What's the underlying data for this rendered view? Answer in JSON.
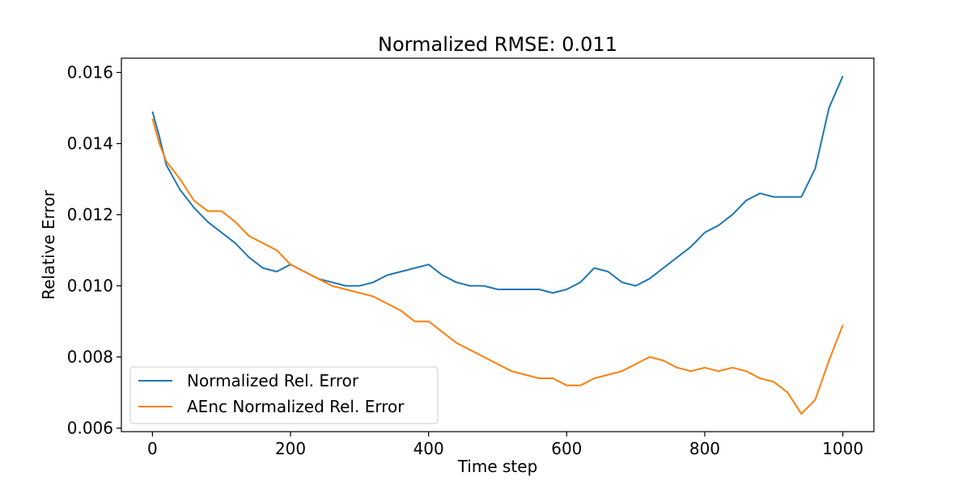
{
  "chart_data": {
    "type": "line",
    "title": "Normalized RMSE: 0.011",
    "xlabel": "Time step",
    "ylabel": "Relative Error",
    "xlim": [
      -45,
      1045
    ],
    "ylim": [
      0.0059,
      0.0164
    ],
    "x_ticks": [
      0,
      200,
      400,
      600,
      800,
      1000
    ],
    "x_tick_labels": [
      "0",
      "200",
      "400",
      "600",
      "800",
      "1000"
    ],
    "y_ticks": [
      0.006,
      0.008,
      0.01,
      0.012,
      0.014,
      0.016
    ],
    "y_tick_labels": [
      "0.006",
      "0.008",
      "0.010",
      "0.012",
      "0.014",
      "0.016"
    ],
    "grid": false,
    "legend_position": "lower-left",
    "series": [
      {
        "name": "Normalized Rel. Error",
        "color": "#1f77b4",
        "x": [
          0,
          10,
          20,
          40,
          60,
          80,
          100,
          120,
          140,
          160,
          180,
          200,
          220,
          240,
          260,
          280,
          300,
          320,
          340,
          360,
          380,
          400,
          420,
          440,
          460,
          480,
          500,
          520,
          540,
          560,
          580,
          600,
          620,
          640,
          660,
          680,
          700,
          720,
          740,
          760,
          780,
          800,
          820,
          840,
          860,
          880,
          900,
          920,
          940,
          960,
          980,
          1000
        ],
        "y": [
          0.0149,
          0.0142,
          0.0134,
          0.0127,
          0.0122,
          0.0118,
          0.0115,
          0.0112,
          0.0108,
          0.0105,
          0.0104,
          0.0106,
          0.0104,
          0.0102,
          0.0101,
          0.01,
          0.01,
          0.0101,
          0.0103,
          0.0104,
          0.0105,
          0.0106,
          0.0103,
          0.0101,
          0.01,
          0.01,
          0.0099,
          0.0099,
          0.0099,
          0.0099,
          0.0098,
          0.0099,
          0.0101,
          0.0105,
          0.0104,
          0.0101,
          0.01,
          0.0102,
          0.0105,
          0.0108,
          0.0111,
          0.0115,
          0.0117,
          0.012,
          0.0124,
          0.0126,
          0.0125,
          0.0125,
          0.0125,
          0.0133,
          0.015,
          0.0159
        ]
      },
      {
        "name": "AEnc Normalized Rel. Error",
        "color": "#ff7f0e",
        "x": [
          0,
          10,
          20,
          40,
          60,
          80,
          100,
          120,
          140,
          160,
          180,
          200,
          220,
          240,
          260,
          280,
          300,
          320,
          340,
          360,
          380,
          400,
          420,
          440,
          460,
          480,
          500,
          520,
          540,
          560,
          580,
          600,
          620,
          640,
          660,
          680,
          700,
          720,
          740,
          760,
          780,
          800,
          820,
          840,
          860,
          880,
          900,
          920,
          940,
          960,
          980,
          1000
        ],
        "y": [
          0.0147,
          0.014,
          0.0135,
          0.013,
          0.0124,
          0.0121,
          0.0121,
          0.0118,
          0.0114,
          0.0112,
          0.011,
          0.0106,
          0.0104,
          0.0102,
          0.01,
          0.0099,
          0.0098,
          0.0097,
          0.0095,
          0.0093,
          0.009,
          0.009,
          0.0087,
          0.0084,
          0.0082,
          0.008,
          0.0078,
          0.0076,
          0.0075,
          0.0074,
          0.0074,
          0.0072,
          0.0072,
          0.0074,
          0.0075,
          0.0076,
          0.0078,
          0.008,
          0.0079,
          0.0077,
          0.0076,
          0.0077,
          0.0076,
          0.0077,
          0.0076,
          0.0074,
          0.0073,
          0.007,
          0.0064,
          0.0068,
          0.0079,
          0.0089
        ]
      }
    ]
  }
}
